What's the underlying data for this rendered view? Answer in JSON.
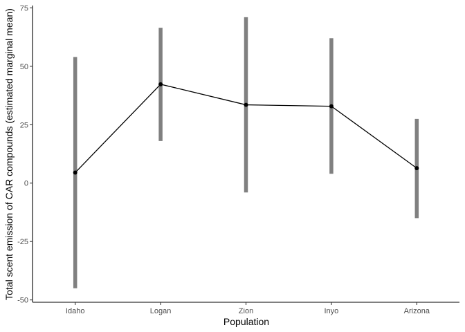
{
  "chart_data": {
    "type": "line",
    "title": "",
    "xlabel": "Population",
    "ylabel": "Total scent emission of CAR compounds (estimated marginal mean)",
    "categories": [
      "Idaho",
      "Logan",
      "Zion",
      "Inyo",
      "Arizona"
    ],
    "series": [
      {
        "values": [
          4.5,
          42.3,
          33.5,
          32.9,
          6.4
        ],
        "lower": [
          -45,
          18,
          -4,
          4,
          -15
        ],
        "upper": [
          54,
          66.5,
          71,
          62,
          27.5
        ]
      }
    ],
    "ylim": [
      -51,
      76
    ],
    "yticks": [
      -50,
      -25,
      0,
      25,
      50,
      75
    ],
    "ytick_labels": [
      "-50",
      "-25",
      "0",
      "25",
      "50",
      "75"
    ],
    "grid": false,
    "colors": {
      "line": "#000000",
      "point": "#000000",
      "errorbar": "#808080"
    }
  }
}
